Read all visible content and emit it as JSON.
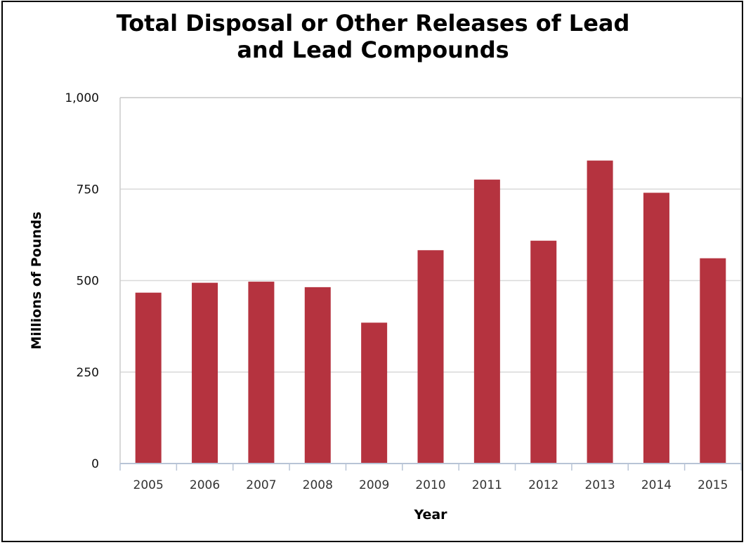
{
  "chart_data": {
    "type": "bar",
    "title_lines": [
      "Total Disposal or Other Releases of Lead",
      "and Lead Compounds"
    ],
    "xlabel": "Year",
    "ylabel": "Millions of Pounds",
    "categories": [
      "2005",
      "2006",
      "2007",
      "2008",
      "2009",
      "2010",
      "2011",
      "2012",
      "2013",
      "2014",
      "2015"
    ],
    "values": [
      467,
      494,
      497,
      482,
      385,
      583,
      776,
      609,
      828,
      740,
      561
    ],
    "ylim": [
      0,
      1000
    ],
    "yticks": [
      0,
      250,
      500,
      750,
      1000
    ],
    "ytick_labels": [
      "0",
      "250",
      "500",
      "750",
      "1,000"
    ],
    "grid": true,
    "legend": "none",
    "bar_color": "#b5333f"
  }
}
